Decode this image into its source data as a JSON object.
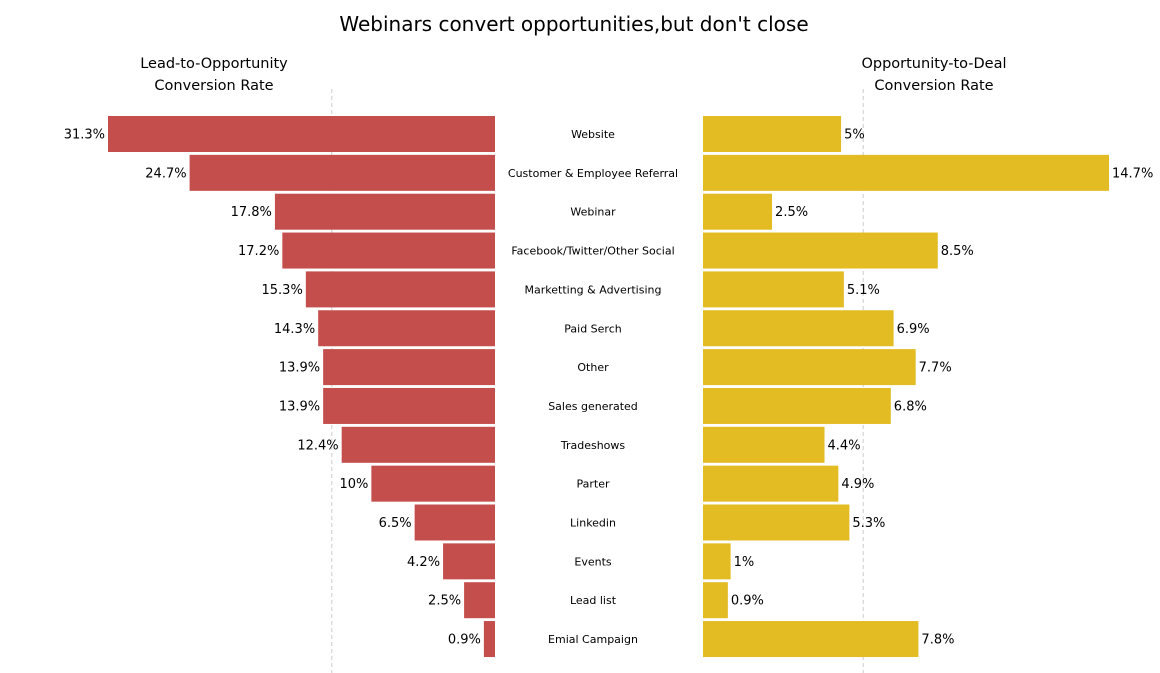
{
  "chart_data": {
    "type": "bar",
    "title": "Webinars convert opportunities,but don't close",
    "categories": [
      "Website",
      "Customer & Employee Referral",
      "Webinar",
      "Facebook/Twitter/Other Social",
      "Marketting & Advertising",
      "Paid Serch",
      "Other",
      "Sales generated",
      "Tradeshows",
      "Parter",
      "Linkedin",
      "Events",
      "Lead list",
      "Emial Campaign"
    ],
    "series": [
      {
        "name": "Lead-to-Opportunity Conversion Rate",
        "name_lines": [
          "Lead-to-Opportunity",
          "Conversion Rate"
        ],
        "color": "#c44e4c",
        "values": [
          31.3,
          24.7,
          17.8,
          17.2,
          15.3,
          14.3,
          13.9,
          13.9,
          12.4,
          10,
          6.5,
          4.2,
          2.5,
          0.9
        ],
        "labels": [
          "31.3%",
          "24.7%",
          "17.8%",
          "17.2%",
          "15.3%",
          "14.3%",
          "13.9%",
          "13.9%",
          "12.4%",
          "10%",
          "6.5%",
          "4.2%",
          "2.5%",
          "0.9%"
        ],
        "xlim": [
          0,
          31.3
        ],
        "reference_line": 13.2
      },
      {
        "name": "Opportunity-to-Deal Conversion Rate",
        "name_lines": [
          "Opportunity-to-Deal",
          "Conversion Rate"
        ],
        "color": "#e3bb22",
        "values": [
          5,
          14.7,
          2.5,
          8.5,
          5.1,
          6.9,
          7.7,
          6.8,
          4.4,
          4.9,
          5.3,
          1,
          0.9,
          7.8
        ],
        "labels": [
          "5%",
          "14.7%",
          "2.5%",
          "8.5%",
          "5.1%",
          "6.9%",
          "7.7%",
          "6.8%",
          "4.4%",
          "4.9%",
          "5.3%",
          "1%",
          "0.9%",
          "7.8%"
        ],
        "xlim": [
          0,
          14.7
        ],
        "reference_line": 5.8
      }
    ],
    "grid": false,
    "reference_line_style": "dashed"
  }
}
